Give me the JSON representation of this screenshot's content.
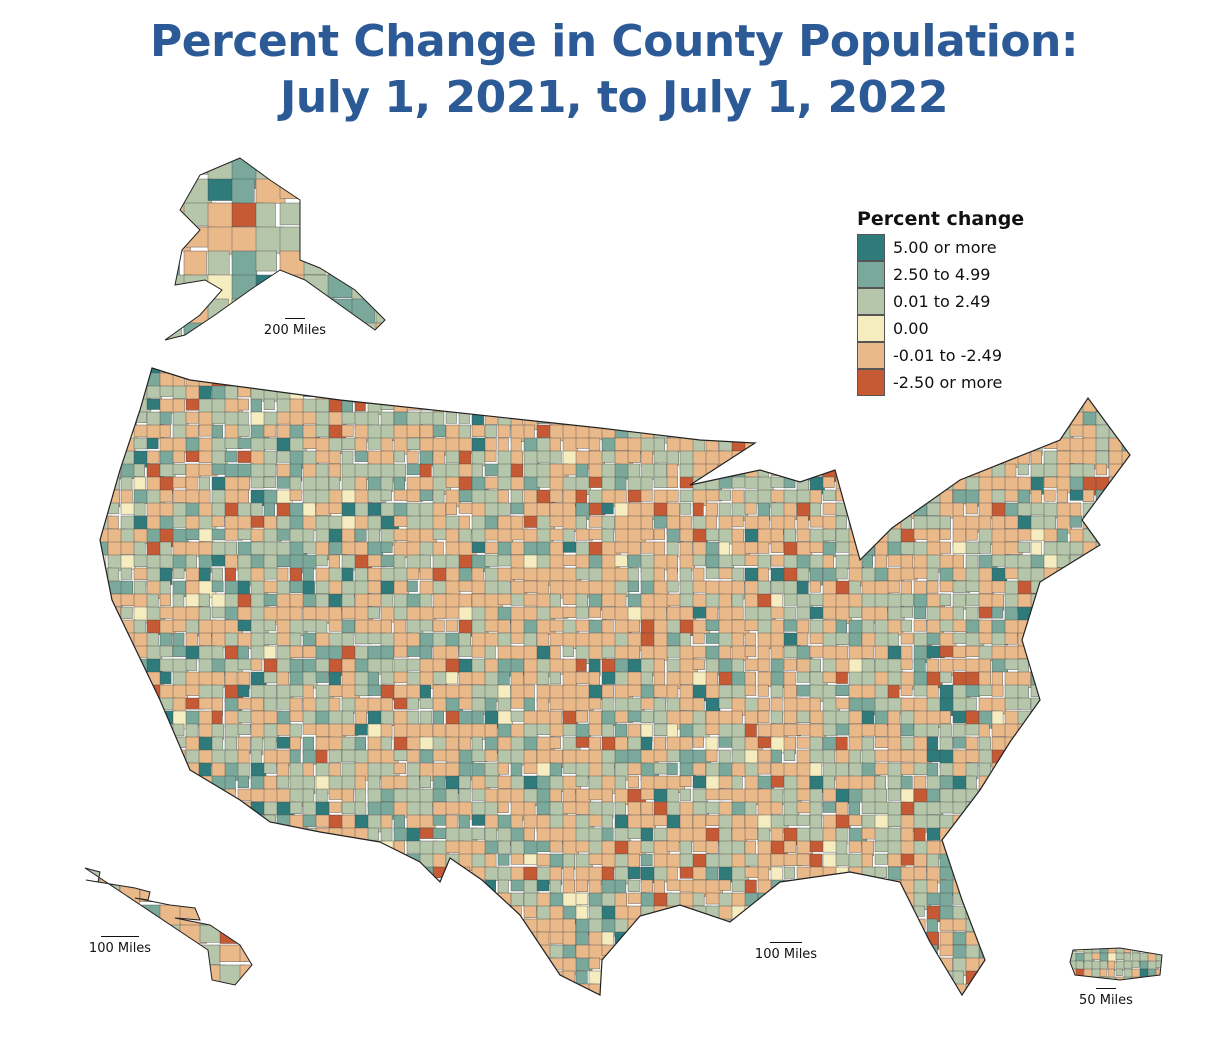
{
  "title": {
    "line1": "Percent Change in County Population:",
    "line2": "July 1, 2021, to July 1, 2022"
  },
  "legend": {
    "title": "Percent change",
    "items": [
      {
        "label": "5.00 or more",
        "color": "#2f7b7c"
      },
      {
        "label": "2.50 to 4.99",
        "color": "#7aa89a"
      },
      {
        "label": "0.01 to 2.49",
        "color": "#b6c6aa"
      },
      {
        "label": "0.00",
        "color": "#f5edc0"
      },
      {
        "label": "-0.01 to -2.49",
        "color": "#e9b98a"
      },
      {
        "label": "-2.50 or more",
        "color": "#c55a35"
      }
    ]
  },
  "scale_bars": {
    "alaska": "200 Miles",
    "hawaii": "100 Miles",
    "conus": "100 Miles",
    "puerto_rico": "50 Miles"
  },
  "regions": [
    "Alaska",
    "Hawaii",
    "Contiguous United States",
    "Puerto Rico"
  ]
}
